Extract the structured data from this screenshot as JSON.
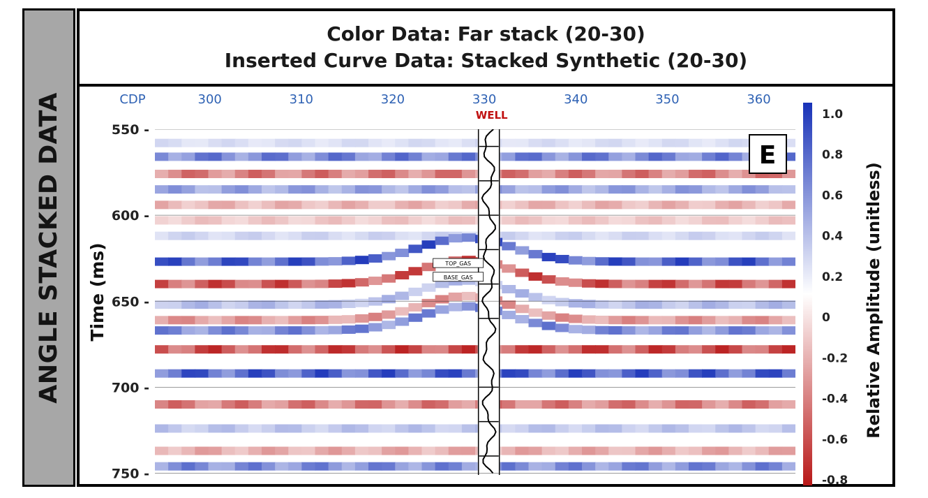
{
  "side_label": "ANGLE STACKED DATA",
  "title_lines": [
    "Color Data: Far stack (20-30)",
    "Inserted Curve Data: Stacked Synthetic (20-30)"
  ],
  "colors": {
    "positive": "#1832b8",
    "zero": "#ffffff",
    "negative": "#b81818",
    "cdp_label": "#2f62b4",
    "well_label": "#c01010",
    "frame": "#000000"
  },
  "chart_data": {
    "type": "heatmap",
    "title": "Color Data: Far stack (20-30)",
    "subtitle": "Inserted Curve Data: Stacked Synthetic (20-30)",
    "panel_label": "E",
    "x_axis": {
      "label": "CDP",
      "ticks": [
        300,
        310,
        320,
        330,
        340,
        350,
        360
      ],
      "range": [
        294,
        364
      ]
    },
    "y_axis": {
      "label": "Time (ms)",
      "ticks": [
        "550 -",
        "600 -",
        "650 -",
        "700 -",
        "750 -"
      ],
      "tick_values": [
        550,
        600,
        650,
        700,
        750
      ],
      "range": [
        550,
        751
      ],
      "reversed": true
    },
    "colorbar": {
      "label": "Relative Amplitude (unitless)",
      "ticks": [
        "1.0",
        "0.8",
        "0.6",
        "0.4",
        "0.2",
        "0",
        "-0.2",
        "-0.4",
        "-0.6",
        "-0.8"
      ],
      "tick_values": [
        1.0,
        0.8,
        0.6,
        0.4,
        0.2,
        0,
        -0.2,
        -0.4,
        -0.6,
        -0.8
      ],
      "range": [
        -1,
        1
      ],
      "colors": [
        "#b81818",
        "#ffffff",
        "#1832b8"
      ]
    },
    "well": {
      "label": "WELL",
      "cdp": 330.5,
      "markers": [
        "TOP_GAS",
        "BASE_GAS"
      ],
      "marker_times": [
        628,
        636
      ]
    },
    "horizons": [
      {
        "t": 558,
        "amp": 0.2
      },
      {
        "t": 566,
        "amp": 0.75
      },
      {
        "t": 576,
        "amp": -0.7
      },
      {
        "t": 585,
        "amp": 0.55
      },
      {
        "t": 594,
        "amp": -0.4
      },
      {
        "t": 603,
        "amp": -0.3
      },
      {
        "t": 612,
        "amp": 0.25
      },
      {
        "t": 627,
        "amp": 0.95
      },
      {
        "t": 640,
        "amp": -0.9
      },
      {
        "t": 652,
        "amp": 0.4
      },
      {
        "t": 661,
        "amp": -0.55
      },
      {
        "t": 667,
        "amp": 0.7
      },
      {
        "t": 678,
        "amp": -0.95
      },
      {
        "t": 692,
        "amp": 0.95
      },
      {
        "t": 710,
        "amp": -0.7
      },
      {
        "t": 724,
        "amp": 0.35
      },
      {
        "t": 737,
        "amp": -0.45
      },
      {
        "t": 746,
        "amp": 0.7
      }
    ]
  }
}
